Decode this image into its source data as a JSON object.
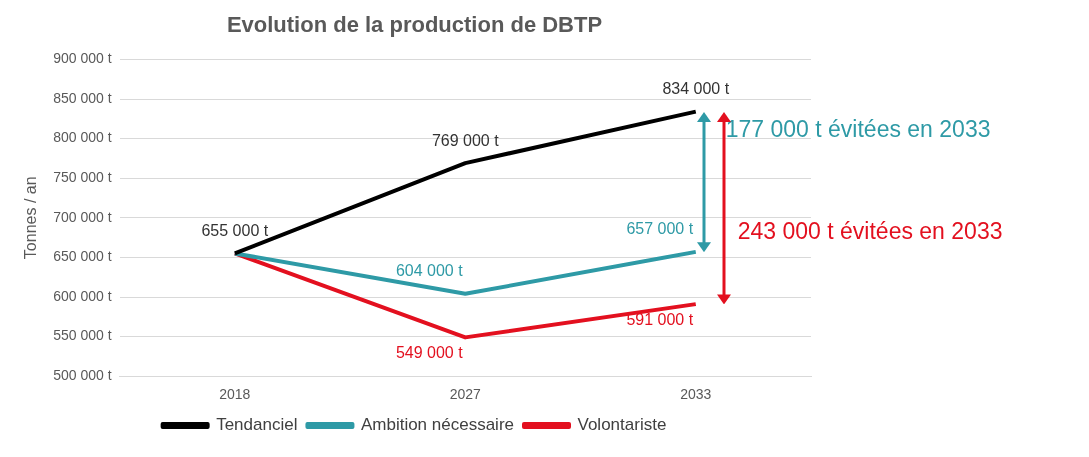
{
  "chart_data": {
    "type": "line",
    "title": "Evolution de la production de DBTP",
    "ylabel": "Tonnes / an",
    "categories": [
      "2018",
      "2027",
      "2033"
    ],
    "series": [
      {
        "name": "Tendanciel",
        "color": "#000000",
        "values": [
          655000,
          769000,
          834000
        ],
        "value_labels": [
          "655 000 t",
          "769 000 t",
          "834 000 t"
        ]
      },
      {
        "name": "Ambition nécessaire",
        "color": "#2e9aa6",
        "values": [
          655000,
          604000,
          657000
        ],
        "value_labels": [
          null,
          "604 000 t",
          "657 000 t"
        ]
      },
      {
        "name": "Volontariste",
        "color": "#e3101f",
        "values": [
          655000,
          549000,
          591000
        ],
        "value_labels": [
          null,
          "549 000 t",
          "591 000 t"
        ]
      }
    ],
    "ylim": [
      500000,
      900000
    ],
    "yticks": [
      {
        "value": 500000,
        "label": "500 000 t"
      },
      {
        "value": 550000,
        "label": "550 000 t"
      },
      {
        "value": 600000,
        "label": "600 000 t"
      },
      {
        "value": 650000,
        "label": "650 000 t"
      },
      {
        "value": 700000,
        "label": "700 000 t"
      },
      {
        "value": 750000,
        "label": "750 000 t"
      },
      {
        "value": 800000,
        "label": "800 000 t"
      },
      {
        "value": 850000,
        "label": "850 000 t"
      },
      {
        "value": 900000,
        "label": "900 000 t"
      }
    ],
    "annotations": [
      "177 000 t évitées en 2033",
      "243 000 t évitées en 2033"
    ],
    "grid": "y",
    "legend": "bottom",
    "marker": "none",
    "line_style": "solid"
  }
}
